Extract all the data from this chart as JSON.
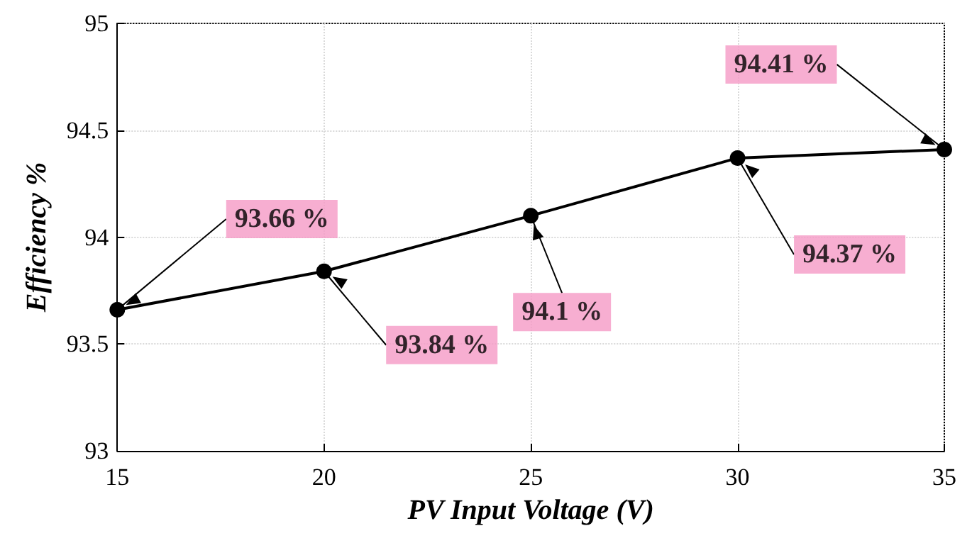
{
  "chart_data": {
    "type": "line",
    "xlabel": "PV Input Voltage (V)",
    "ylabel": "Efficiency %",
    "x": [
      15,
      20,
      25,
      30,
      35
    ],
    "series": [
      {
        "color": "#000000",
        "values": [
          93.66,
          93.84,
          94.1,
          94.37,
          94.41
        ]
      }
    ],
    "xlim": [
      15,
      35
    ],
    "xticks": [
      15,
      20,
      25,
      30,
      35
    ],
    "ylim": [
      93,
      95
    ],
    "yticks": [
      93,
      93.5,
      94,
      94.5,
      95
    ],
    "grid": true,
    "marker": "circle",
    "line_style": "solid",
    "annotations": [
      {
        "text": "93.66 %",
        "x": 15,
        "y": 93.66
      },
      {
        "text": "93.84 %",
        "x": 20,
        "y": 93.84
      },
      {
        "text": "94.1 %",
        "x": 25,
        "y": 94.1
      },
      {
        "text": "94.37 %",
        "x": 30,
        "y": 94.37
      },
      {
        "text": "94.41 %",
        "x": 35,
        "y": 94.41
      }
    ]
  }
}
